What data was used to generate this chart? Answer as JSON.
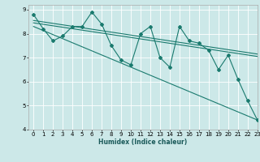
{
  "xlabel": "Humidex (Indice chaleur)",
  "background_color": "#cce8e8",
  "grid_color": "#ffffff",
  "line_color": "#1a7a6e",
  "xlim": [
    -0.5,
    23
  ],
  "ylim": [
    4,
    9.2
  ],
  "yticks": [
    4,
    5,
    6,
    7,
    8,
    9
  ],
  "xticks": [
    0,
    1,
    2,
    3,
    4,
    5,
    6,
    7,
    8,
    9,
    10,
    11,
    12,
    13,
    14,
    15,
    16,
    17,
    18,
    19,
    20,
    21,
    22,
    23
  ],
  "series1_x": [
    0,
    1,
    2,
    3,
    4,
    5,
    6,
    7,
    8,
    9,
    10,
    11,
    12,
    13,
    14,
    15,
    16,
    17,
    18,
    19,
    20,
    21,
    22,
    23
  ],
  "series1_y": [
    8.8,
    8.2,
    7.7,
    7.9,
    8.3,
    8.3,
    8.9,
    8.4,
    7.5,
    6.9,
    6.7,
    8.0,
    8.3,
    7.0,
    6.6,
    8.3,
    7.7,
    7.6,
    7.3,
    6.5,
    7.1,
    6.1,
    5.2,
    4.4
  ],
  "trend_lines": [
    {
      "x": [
        0,
        23
      ],
      "y": [
        8.55,
        7.15
      ]
    },
    {
      "x": [
        0,
        23
      ],
      "y": [
        8.45,
        7.05
      ]
    },
    {
      "x": [
        0,
        23
      ],
      "y": [
        8.3,
        4.4
      ]
    }
  ],
  "marker": "D",
  "marker_size": 2.0,
  "line_width": 0.8,
  "tick_fontsize": 5.0,
  "xlabel_fontsize": 5.5
}
